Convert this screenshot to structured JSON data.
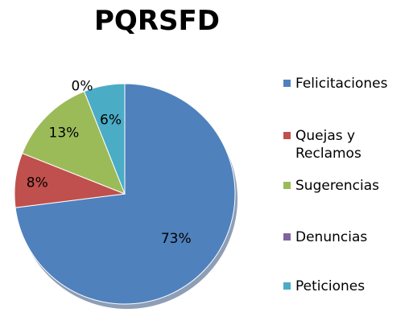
{
  "chart_data": {
    "type": "pie",
    "title": "PQRSFD",
    "legend_position": "right",
    "slices": [
      {
        "name": "Felicitaciones",
        "value": 73,
        "label": "73%",
        "color": "#4F81BD"
      },
      {
        "name": "Quejas y Reclamos",
        "value": 8,
        "label": "8%",
        "color": "#C0504D"
      },
      {
        "name": "Sugerencias",
        "value": 13,
        "label": "13%",
        "color": "#9BBB59"
      },
      {
        "name": "Denuncias",
        "value": 0,
        "label": "0%",
        "color": "#8064A2"
      },
      {
        "name": "Peticiones",
        "value": 6,
        "label": "6%",
        "color": "#4BACC6"
      }
    ]
  }
}
